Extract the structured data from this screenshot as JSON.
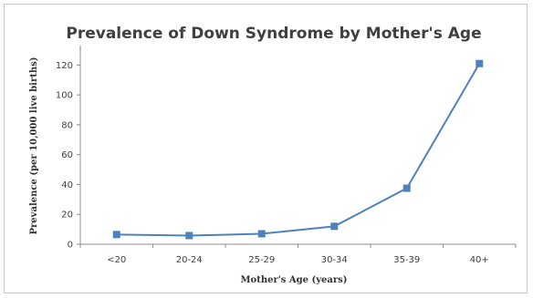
{
  "chart_data": {
    "type": "line",
    "title": "Prevalence of Down Syndrome by Mother's Age",
    "xlabel": "Mother's Age (years)",
    "ylabel": "Prevalence  (per 10,000 live births)",
    "categories": [
      "<20",
      "20-24",
      "25-29",
      "30-34",
      "35-39",
      "40+"
    ],
    "series": [
      {
        "values": [
          6.5,
          5.8,
          7.0,
          12.0,
          37.5,
          121.0
        ],
        "color": "#4f81bd",
        "marker": "square"
      }
    ],
    "ylim": [
      0,
      130
    ],
    "yticks": [
      0,
      20,
      40,
      60,
      80,
      100,
      120
    ],
    "grid": false,
    "legend": "none"
  }
}
